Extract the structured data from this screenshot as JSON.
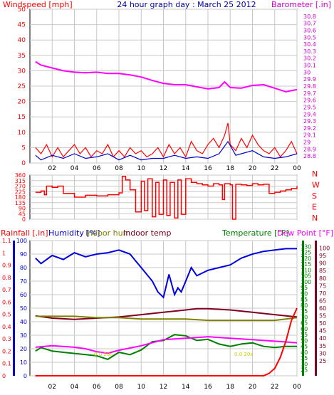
{
  "title": "24 hour graph day : March 25 2012",
  "x_ticks": [
    "02",
    "04",
    "06",
    "08",
    "10",
    "12",
    "14",
    "16",
    "18",
    "20",
    "22",
    "00"
  ],
  "colors": {
    "wind": "#ff0000",
    "wind_avg": "#0000cc",
    "baro": "#ff00ff",
    "dir": "#ff0000",
    "rain": "#ff0000",
    "humidity": "#0000dd",
    "indoor_hum": "#808000",
    "indoor_temp": "#800020",
    "temp": "#008000",
    "dew": "#ff00ff",
    "grid": "#c8c8c8"
  },
  "chart_data": [
    {
      "type": "line",
      "name": "wind-baro",
      "labels": {
        "left": "Windspeed [mph]",
        "right": "Barometer [.in]"
      },
      "y_left": {
        "range": [
          0,
          50
        ],
        "ticks": [
          0,
          5,
          10,
          15,
          20,
          25,
          30,
          35,
          40,
          45,
          50
        ]
      },
      "y_right": {
        "range": [
          28.7,
          30.9
        ],
        "ticks": [
          "28.8",
          "28.9",
          "29",
          "29.1",
          "29.2",
          "29.3",
          "29.4",
          "29.5",
          "29.6",
          "29.7",
          "29.8",
          "29.9",
          "30",
          "30.1",
          "30.2",
          "30.3",
          "30.4",
          "30.5",
          "30.6",
          "30.7",
          "30.8"
        ]
      },
      "series": [
        {
          "key": "barometer",
          "axis": "right",
          "x": [
            0.5,
            1,
            2,
            3,
            4,
            5,
            6,
            7,
            8,
            9,
            10,
            11,
            12,
            13,
            14,
            15,
            16,
            17,
            17.5,
            18,
            19,
            20,
            21,
            22,
            23,
            24
          ],
          "y": [
            30.15,
            30.1,
            30.06,
            30.02,
            30.0,
            29.99,
            30.0,
            29.98,
            29.98,
            29.96,
            29.93,
            29.88,
            29.84,
            29.82,
            29.82,
            29.79,
            29.76,
            29.78,
            29.86,
            29.78,
            29.77,
            29.81,
            29.82,
            29.77,
            29.72,
            29.75
          ]
        },
        {
          "key": "wind_gust",
          "axis": "left",
          "x": [
            0.5,
            1,
            1.5,
            2,
            2.5,
            3,
            3.5,
            4,
            4.5,
            5,
            5.5,
            6,
            6.5,
            7,
            7.5,
            8,
            8.5,
            9,
            9.5,
            10,
            10.5,
            11,
            11.5,
            12,
            12.5,
            13,
            13.5,
            14,
            14.5,
            15,
            15.5,
            16,
            16.5,
            17,
            17.5,
            17.8,
            18,
            18.5,
            19,
            19.5,
            20,
            20.5,
            21,
            21.5,
            22,
            22.5,
            23,
            23.5,
            24
          ],
          "y": [
            5,
            3,
            6,
            2,
            5,
            2,
            4,
            6,
            3,
            5,
            2,
            4,
            3,
            6,
            2,
            4,
            2,
            5,
            3,
            4,
            2,
            3,
            5,
            2,
            6,
            3,
            5,
            2,
            7,
            4,
            3,
            6,
            8,
            5,
            9,
            13,
            6,
            4,
            8,
            5,
            9,
            6,
            4,
            3,
            5,
            2,
            4,
            7,
            3
          ]
        },
        {
          "key": "wind_avg",
          "axis": "left",
          "x": [
            0.5,
            1,
            2,
            3,
            4,
            5,
            6,
            7,
            8,
            9,
            10,
            11,
            12,
            13,
            14,
            15,
            16,
            17,
            17.8,
            18.5,
            19,
            20,
            21,
            22,
            23,
            24
          ],
          "y": [
            2.5,
            1,
            2.5,
            1.5,
            3,
            1.5,
            2,
            3,
            1,
            2.5,
            1,
            1.5,
            1.5,
            2.5,
            1.5,
            2,
            1.5,
            3,
            7,
            2.5,
            3,
            4,
            2,
            1.5,
            2,
            3
          ]
        }
      ]
    },
    {
      "type": "line",
      "name": "wind-direction",
      "y_left": {
        "range": [
          0,
          360
        ],
        "ticks": [
          0,
          45,
          90,
          135,
          180,
          225,
          270,
          315,
          360
        ]
      },
      "compass": [
        "N",
        "W",
        "S",
        "E",
        "N"
      ],
      "series": [
        {
          "key": "direction",
          "axis": "left",
          "x": [
            0.5,
            1,
            1.3,
            1.5,
            2,
            2.5,
            3,
            4,
            5,
            6,
            7,
            8,
            8.3,
            8.6,
            9,
            9.5,
            10,
            10.3,
            10.6,
            11,
            11.3,
            11.6,
            12,
            12.3,
            12.6,
            13,
            13.3,
            13.6,
            14,
            14.5,
            15,
            15.5,
            16,
            16.5,
            17,
            17.3,
            17.5,
            18,
            18.2,
            18.5,
            19,
            19.5,
            20,
            20.5,
            21,
            21.5,
            22,
            22.5,
            23,
            23.5,
            24
          ],
          "y": [
            220,
            230,
            200,
            270,
            260,
            270,
            210,
            180,
            195,
            190,
            200,
            215,
            350,
            320,
            240,
            60,
            310,
            70,
            330,
            20,
            300,
            40,
            320,
            30,
            300,
            10,
            320,
            40,
            330,
            300,
            290,
            280,
            270,
            290,
            280,
            160,
            290,
            280,
            0,
            285,
            280,
            275,
            290,
            280,
            285,
            210,
            220,
            230,
            240,
            250,
            270
          ]
        }
      ]
    },
    {
      "type": "line",
      "name": "rain-humidity-temperature",
      "labels": {
        "rain": "Rainfall [.in]",
        "humidity": "Humidity [%]",
        "indoor_hum": "Indoor hum",
        "indoor_temp": "Indoor temp",
        "temp": "Temperature [°F]",
        "dew": "Dew Point [°F]"
      },
      "y_rain": {
        "range": [
          0,
          1.1
        ],
        "ticks": [
          "0",
          "0.1",
          "0.2",
          "0.3",
          "0.4",
          "0.5",
          "0.6",
          "0.7",
          "0.8",
          "0.9",
          "1",
          "1.1"
        ]
      },
      "y_humidity": {
        "range": [
          0,
          100
        ],
        "ticks": [
          0,
          10,
          20,
          30,
          40,
          50,
          60,
          70,
          80,
          90,
          100
        ]
      },
      "y_temp": {
        "range": [
          20,
          135
        ],
        "ticks": [
          25,
          30,
          35,
          40,
          45,
          50,
          55,
          60,
          65,
          70,
          75,
          80,
          85,
          90,
          95,
          100,
          105,
          110,
          115,
          120,
          125,
          130
        ]
      },
      "y_dew": {
        "range": [
          15,
          105
        ],
        "ticks": [
          25,
          30,
          35,
          40,
          45,
          50,
          55,
          60,
          65,
          70,
          75,
          80,
          85,
          90,
          95,
          100
        ]
      },
      "annotations": [
        "0.0 20s",
        "0.0 20s"
      ],
      "series": [
        {
          "key": "humidity",
          "axis": "humidity",
          "x": [
            0.5,
            1,
            2,
            3,
            4,
            5,
            6,
            7,
            8,
            9,
            9.5,
            10,
            10.5,
            11,
            11.5,
            12,
            12.5,
            13,
            13.3,
            13.6,
            14,
            14.5,
            15,
            16,
            17,
            18,
            19,
            20,
            21,
            22,
            23,
            24
          ],
          "y": [
            87,
            83,
            89,
            86,
            91,
            88,
            90,
            91,
            93,
            90,
            85,
            80,
            75,
            70,
            62,
            58,
            75,
            60,
            65,
            62,
            70,
            80,
            74,
            78,
            80,
            82,
            87,
            90,
            92,
            93,
            94,
            94
          ]
        },
        {
          "key": "indoor_temp",
          "axis": "temp",
          "x": [
            0.5,
            2,
            4,
            6,
            8,
            10,
            12,
            14,
            15,
            16,
            18,
            20,
            22,
            24
          ],
          "y": [
            71,
            69,
            68,
            69,
            70,
            72,
            74,
            76,
            77,
            77,
            76,
            74,
            72,
            70
          ]
        },
        {
          "key": "indoor_hum",
          "axis": "humidity",
          "x": [
            0.5,
            2,
            4,
            6,
            8,
            10,
            12,
            14,
            16,
            18,
            20,
            22,
            23,
            24
          ],
          "y": [
            44,
            44,
            44,
            43,
            43,
            42,
            42,
            42,
            41,
            41,
            41,
            41,
            42,
            43
          ]
        },
        {
          "key": "temperature",
          "axis": "temp",
          "x": [
            0.5,
            1,
            2,
            3,
            4,
            5,
            6,
            7,
            8,
            9,
            10,
            11,
            12,
            13,
            14,
            15,
            16,
            17,
            18,
            19,
            20,
            21,
            22,
            23,
            24
          ],
          "y": [
            41,
            44,
            41,
            40,
            39,
            38,
            37,
            34,
            40,
            38,
            42,
            49,
            50,
            55,
            54,
            50,
            51,
            47,
            45,
            47,
            48,
            45,
            44,
            45,
            45
          ]
        },
        {
          "key": "dew_point",
          "axis": "dew",
          "x": [
            0.5,
            2,
            4,
            5,
            6,
            7,
            8,
            10,
            12,
            14,
            16,
            18,
            20,
            22,
            24
          ],
          "y": [
            34,
            35,
            34,
            33,
            31,
            30,
            32,
            35,
            39,
            40,
            41,
            40,
            39,
            38,
            37
          ]
        },
        {
          "key": "rain",
          "axis": "rain",
          "x": [
            0.5,
            20,
            21,
            21.5,
            22,
            22.5,
            23,
            23.5,
            24
          ],
          "y": [
            0,
            0,
            0,
            0.02,
            0.06,
            0.15,
            0.28,
            0.45,
            0.55
          ]
        }
      ]
    }
  ]
}
